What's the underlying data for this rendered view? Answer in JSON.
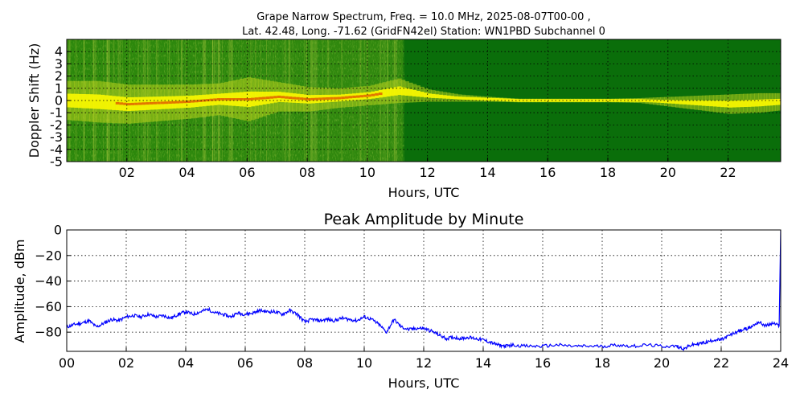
{
  "chart_data": [
    {
      "type": "heatmap",
      "title_line1": "Grape Narrow Spectrum, Freq. = 10.0 MHz, 2025-08-07T00-00 ,",
      "title_line2": "Lat.  42.48, Long. -71.62 (GridFN42el) Station: WN1PBD Subchannel 0",
      "xlabel": "Hours, UTC",
      "ylabel": "Doppler Shift (Hz)",
      "xlim": [
        0,
        23.75
      ],
      "ylim": [
        -5,
        5
      ],
      "xticks": [
        "02",
        "04",
        "06",
        "08",
        "10",
        "12",
        "14",
        "16",
        "18",
        "20",
        "22"
      ],
      "xtick_values": [
        2,
        4,
        6,
        8,
        10,
        12,
        14,
        16,
        18,
        20,
        22
      ],
      "yticks": [
        "4",
        "3",
        "2",
        "1",
        "0",
        "-1",
        "-2",
        "-3",
        "-4",
        "-5"
      ],
      "ytick_values": [
        4,
        3,
        2,
        1,
        0,
        -1,
        -2,
        -3,
        -4,
        -5
      ],
      "grid": true,
      "colors": {
        "background": "#0a6e0a",
        "signal": "#f5f500",
        "peak": "#e06000"
      },
      "signal_trace": {
        "hours": [
          0,
          1,
          2,
          3,
          4,
          5,
          6,
          7,
          8,
          9,
          10,
          11,
          12,
          13,
          14,
          15,
          16,
          17,
          18,
          19,
          20,
          21,
          22,
          23,
          23.75
        ],
        "doppler_hz": [
          0,
          -0.1,
          -0.3,
          -0.2,
          -0.1,
          0.1,
          0.1,
          0.3,
          0.1,
          0.2,
          0.4,
          0.8,
          0.4,
          0.2,
          0.1,
          0,
          0,
          0,
          0,
          0,
          -0.1,
          -0.2,
          -0.3,
          -0.2,
          -0.1
        ],
        "spread_hz": [
          1.6,
          1.7,
          1.6,
          1.5,
          1.4,
          1.3,
          1.8,
          1.2,
          1.0,
          0.8,
          0.8,
          1.0,
          0.5,
          0.3,
          0.2,
          0.15,
          0.15,
          0.15,
          0.15,
          0.2,
          0.4,
          0.6,
          0.8,
          0.8,
          0.7
        ]
      }
    },
    {
      "type": "line",
      "title": "Peak Amplitude by Minute",
      "xlabel": "Hours, UTC",
      "ylabel": "Amplitude, dBm",
      "xlim": [
        0,
        24
      ],
      "ylim": [
        -95,
        0
      ],
      "xticks": [
        "00",
        "02",
        "04",
        "06",
        "08",
        "10",
        "12",
        "14",
        "16",
        "18",
        "20",
        "22",
        "24"
      ],
      "xtick_values": [
        0,
        2,
        4,
        6,
        8,
        10,
        12,
        14,
        16,
        18,
        20,
        22,
        24
      ],
      "yticks": [
        "0",
        "−20",
        "−40",
        "−60",
        "−80"
      ],
      "ytick_values": [
        0,
        -20,
        -40,
        -60,
        -80
      ],
      "grid": true,
      "line_color": "#0000ff",
      "series": [
        {
          "x": [
            0,
            0.25,
            0.5,
            0.75,
            1,
            1.25,
            1.5,
            1.75,
            2,
            2.25,
            2.5,
            2.75,
            3,
            3.25,
            3.5,
            3.75,
            4,
            4.25,
            4.5,
            4.75,
            5,
            5.25,
            5.5,
            5.75,
            6,
            6.25,
            6.5,
            6.75,
            7,
            7.25,
            7.5,
            7.75,
            8,
            8.25,
            8.5,
            8.75,
            9,
            9.25,
            9.5,
            9.75,
            10,
            10.25,
            10.5,
            10.75,
            11,
            11.25,
            11.5,
            11.75,
            12,
            12.25,
            12.5,
            12.75,
            13,
            13.25,
            13.5,
            13.75,
            14,
            14.25,
            14.5,
            14.75,
            15,
            15.5,
            16,
            16.5,
            17,
            17.5,
            18,
            18.5,
            19,
            19.5,
            20,
            20.5,
            20.75,
            21,
            21.25,
            21.5,
            21.75,
            22,
            22.25,
            22.5,
            22.75,
            23,
            23.25,
            23.5,
            23.75,
            23.95,
            24
          ],
          "y": [
            -76,
            -74,
            -73,
            -71,
            -76,
            -73,
            -70,
            -71,
            -68,
            -67,
            -68,
            -66,
            -68,
            -67,
            -69,
            -66,
            -64,
            -66,
            -64,
            -62,
            -65,
            -66,
            -68,
            -65,
            -66,
            -65,
            -63,
            -64,
            -64,
            -66,
            -63,
            -66,
            -72,
            -70,
            -71,
            -70,
            -71,
            -69,
            -70,
            -71,
            -68,
            -70,
            -74,
            -80,
            -70,
            -76,
            -78,
            -77,
            -77,
            -79,
            -82,
            -85,
            -84,
            -85,
            -84,
            -85,
            -86,
            -88,
            -90,
            -91,
            -90,
            -91,
            -91,
            -90,
            -91,
            -91,
            -91,
            -90,
            -91,
            -90,
            -91,
            -91,
            -93,
            -90,
            -89,
            -88,
            -86,
            -86,
            -83,
            -80,
            -78,
            -76,
            -72,
            -75,
            -73,
            -75,
            0
          ]
        }
      ]
    }
  ]
}
